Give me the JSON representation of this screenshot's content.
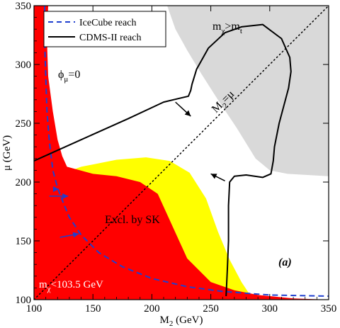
{
  "chart_data": {
    "type": "area",
    "xlabel": "M₂ (GeV)",
    "ylabel": "μ (GeV)",
    "xlim": [
      100,
      350
    ],
    "ylim": [
      100,
      350
    ],
    "xticks": [
      100,
      150,
      200,
      250,
      300,
      350
    ],
    "yticks": [
      100,
      150,
      200,
      250,
      300,
      350
    ],
    "grid": false,
    "legend": {
      "placement": "top-left",
      "entries": [
        {
          "label": "IceCube reach",
          "style": "dashed",
          "color": "#1f3fcf"
        },
        {
          "label": "CDMS-II reach",
          "style": "solid",
          "color": "#000000"
        }
      ]
    },
    "regions": [
      {
        "label": "mχ>mt",
        "color": "#d9d9d9",
        "boundary": [
          [
            213,
            350
          ],
          [
            220,
            330
          ],
          [
            230,
            312
          ],
          [
            242,
            292
          ],
          [
            256,
            270
          ],
          [
            272,
            246
          ],
          [
            288,
            220
          ],
          [
            300,
            210
          ],
          [
            315,
            207
          ],
          [
            350,
            205
          ]
        ]
      },
      {
        "label": "Excl. by SK",
        "color": "#ffff00",
        "boundary": [
          [
            106,
            196
          ],
          [
            118,
            205
          ],
          [
            140,
            213
          ],
          [
            170,
            219
          ],
          [
            195,
            221
          ],
          [
            215,
            218
          ],
          [
            232,
            208
          ],
          [
            246,
            186
          ],
          [
            256,
            158
          ],
          [
            266,
            134
          ],
          [
            276,
            115
          ],
          [
            282,
            106
          ],
          [
            285,
            101
          ],
          [
            150,
            100
          ],
          [
            120,
            112
          ],
          [
            110,
            130
          ],
          [
            106,
            160
          ],
          [
            106,
            196
          ]
        ]
      },
      {
        "label": "mχ<103.5 GeV",
        "color": "#ff0000",
        "boundary": [
          [
            100,
            350
          ],
          [
            112,
            350
          ],
          [
            111,
            320
          ],
          [
            112,
            290
          ],
          [
            116,
            260
          ],
          [
            120,
            236
          ],
          [
            124,
            222
          ],
          [
            128,
            213
          ],
          [
            150,
            207
          ],
          [
            170,
            205
          ],
          [
            190,
            200
          ],
          [
            205,
            190
          ],
          [
            230,
            135
          ],
          [
            250,
            115
          ],
          [
            270,
            108
          ],
          [
            290,
            104
          ],
          [
            320,
            101
          ],
          [
            350,
            100
          ]
        ]
      }
    ],
    "series": [
      {
        "name": "IceCube reach",
        "style": "dashed",
        "color": "#1f3fcf",
        "x": [
          109,
          109,
          110,
          111,
          113,
          116,
          120,
          125,
          130,
          140,
          155,
          175,
          200,
          230,
          260,
          300,
          350
        ],
        "y": [
          350,
          320,
          290,
          260,
          235,
          210,
          195,
          182,
          170,
          155,
          140,
          128,
          118,
          111,
          107,
          104,
          103
        ]
      },
      {
        "name": "CDMS-II reach",
        "style": "solid",
        "color": "#000000",
        "x": [
          100,
          140,
          180,
          210,
          231,
          233,
          234,
          238,
          248,
          262,
          276,
          294,
          310,
          317,
          318,
          316,
          308,
          304,
          303,
          301,
          294,
          280,
          270,
          266,
          265,
          265,
          264,
          263
        ],
        "y": [
          218,
          236,
          254,
          268,
          273,
          278,
          283,
          296,
          314,
          327,
          332,
          334,
          322,
          306,
          294,
          280,
          250,
          230,
          218,
          207,
          204,
          206,
          205,
          200,
          180,
          150,
          125,
          103
        ]
      }
    ],
    "annotations": [
      {
        "text": "mχ>mt",
        "x": 258,
        "y": 333
      },
      {
        "text": "ϕμ=0",
        "x": 118,
        "y": 293
      },
      {
        "text": "M2=μ",
        "x": 296,
        "y": 262
      },
      {
        "text": "Excl. by SK",
        "x": 158,
        "y": 164
      },
      {
        "text": "(a)",
        "x": 325,
        "y": 134
      },
      {
        "text": "mχ<103.5 GeV",
        "x": 104,
        "y": 112
      }
    ],
    "diagonal": {
      "label": "M2=μ",
      "x": [
        100,
        350
      ],
      "y": [
        100,
        350
      ],
      "style": "dotted"
    }
  }
}
